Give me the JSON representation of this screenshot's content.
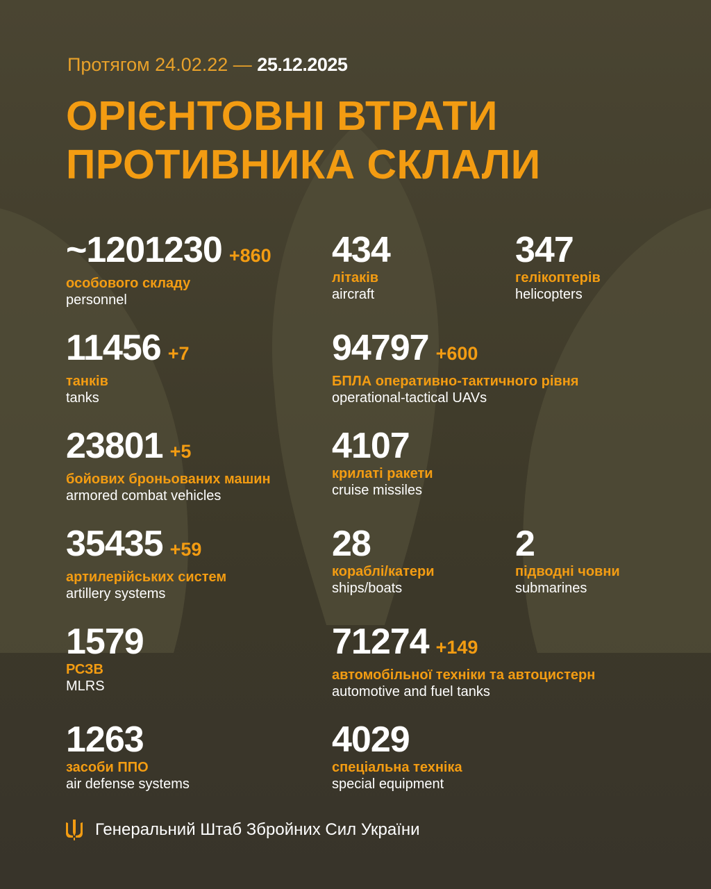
{
  "header": {
    "period_prefix": "Протягом 24.02.22 —",
    "period_end": "25.12.2025",
    "title_line1": "ОРІЄНТОВНІ ВТРАТИ",
    "title_line2": "ПРОТИВНИКА СКЛАЛИ"
  },
  "stats": [
    {
      "value": "~1201230",
      "delta": "+860",
      "ua": "особового складу",
      "en": "personnel"
    },
    {
      "value": "434",
      "delta": "",
      "ua": "літаків",
      "en": "aircraft"
    },
    {
      "value": "347",
      "delta": "",
      "ua": "гелікоптерів",
      "en": "helicopters"
    },
    {
      "value": "11456",
      "delta": "+7",
      "ua": "танків",
      "en": "tanks"
    },
    {
      "value": "94797",
      "delta": "+600",
      "ua": "БПЛА оперативно-тактичного рівня",
      "en": "operational-tactical UAVs"
    },
    {
      "value": "23801",
      "delta": "+5",
      "ua": "бойових броньованих машин",
      "en": "armored combat vehicles"
    },
    {
      "value": "4107",
      "delta": "",
      "ua": "крилаті ракети",
      "en": "cruise missiles"
    },
    {
      "value": "35435",
      "delta": "+59",
      "ua": "артилерійських систем",
      "en": "artillery systems"
    },
    {
      "value": "28",
      "delta": "",
      "ua": "кораблі/катери",
      "en": "ships/boats"
    },
    {
      "value": "2",
      "delta": "",
      "ua": "підводні човни",
      "en": "submarines"
    },
    {
      "value": "1579",
      "delta": "",
      "ua": "РСЗВ",
      "en": "MLRS"
    },
    {
      "value": "71274",
      "delta": "+149",
      "ua": "автомобільної техніки та автоцистерн",
      "en": "automotive and fuel tanks"
    },
    {
      "value": "1263",
      "delta": "",
      "ua": "засоби ППО",
      "en": "air defense systems"
    },
    {
      "value": "4029",
      "delta": "",
      "ua": "спеціальна техніка",
      "en": "special equipment"
    }
  ],
  "footer": {
    "label": "Генеральний Штаб Збройних Сил України",
    "icon": "trident-icon"
  },
  "colors": {
    "accent": "#f39c12",
    "background": "#433f2e",
    "text": "#ffffff"
  }
}
